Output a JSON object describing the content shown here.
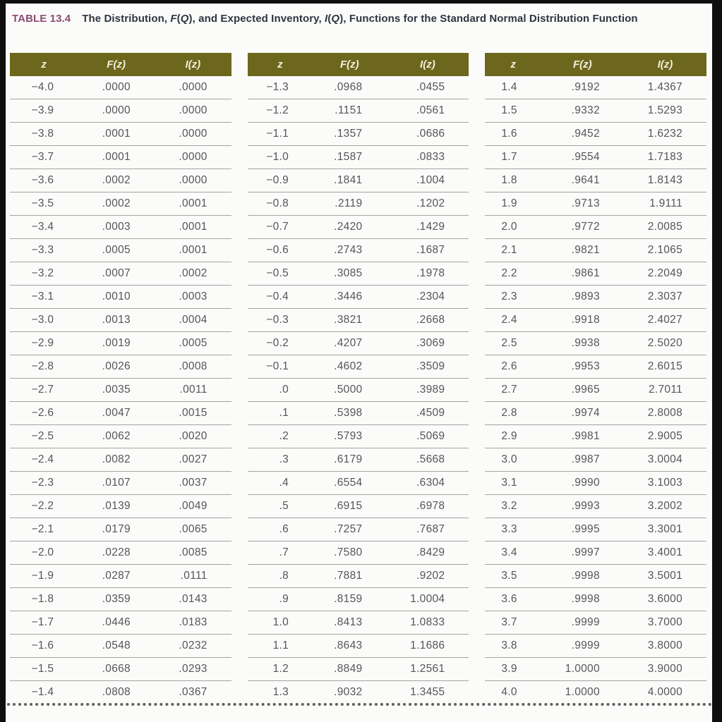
{
  "page": {
    "background": "#fbfbfa",
    "border_color": "#0f0f0f"
  },
  "title": {
    "label": "TABLE 13.4",
    "label_color": "#8c4b72",
    "subtitle_parts": [
      {
        "text": "The Distribution, ",
        "italic": false
      },
      {
        "text": "F",
        "italic": true
      },
      {
        "text": "(",
        "italic": false
      },
      {
        "text": "Q",
        "italic": true
      },
      {
        "text": "), and Expected Inventory, ",
        "italic": false
      },
      {
        "text": "I",
        "italic": true
      },
      {
        "text": "(",
        "italic": false
      },
      {
        "text": "Q",
        "italic": true
      },
      {
        "text": "), Functions for the Standard Normal Distribution Function",
        "italic": false
      }
    ]
  },
  "table": {
    "header_bg": "#6d671d",
    "header_text_color": "#f2efdc",
    "columns": [
      "z",
      "F(z)",
      "I(z)"
    ],
    "groups": [
      {
        "rows": [
          [
            "−4.0",
            ".0000",
            ".0000"
          ],
          [
            "−3.9",
            ".0000",
            ".0000"
          ],
          [
            "−3.8",
            ".0001",
            ".0000"
          ],
          [
            "−3.7",
            ".0001",
            ".0000"
          ],
          [
            "−3.6",
            ".0002",
            ".0000"
          ],
          [
            "−3.5",
            ".0002",
            ".0001"
          ],
          [
            "−3.4",
            ".0003",
            ".0001"
          ],
          [
            "−3.3",
            ".0005",
            ".0001"
          ],
          [
            "−3.2",
            ".0007",
            ".0002"
          ],
          [
            "−3.1",
            ".0010",
            ".0003"
          ],
          [
            "−3.0",
            ".0013",
            ".0004"
          ],
          [
            "−2.9",
            ".0019",
            ".0005"
          ],
          [
            "−2.8",
            ".0026",
            ".0008"
          ],
          [
            "−2.7",
            ".0035",
            ".0011"
          ],
          [
            "−2.6",
            ".0047",
            ".0015"
          ],
          [
            "−2.5",
            ".0062",
            ".0020"
          ],
          [
            "−2.4",
            ".0082",
            ".0027"
          ],
          [
            "−2.3",
            ".0107",
            ".0037"
          ],
          [
            "−2.2",
            ".0139",
            ".0049"
          ],
          [
            "−2.1",
            ".0179",
            ".0065"
          ],
          [
            "−2.0",
            ".0228",
            ".0085"
          ],
          [
            "−1.9",
            ".0287",
            ".0111"
          ],
          [
            "−1.8",
            ".0359",
            ".0143"
          ],
          [
            "−1.7",
            ".0446",
            ".0183"
          ],
          [
            "−1.6",
            ".0548",
            ".0232"
          ],
          [
            "−1.5",
            ".0668",
            ".0293"
          ],
          [
            "−1.4",
            ".0808",
            ".0367"
          ]
        ]
      },
      {
        "rows": [
          [
            "−1.3",
            ".0968",
            ".0455"
          ],
          [
            "−1.2",
            ".1151",
            ".0561"
          ],
          [
            "−1.1",
            ".1357",
            ".0686"
          ],
          [
            "−1.0",
            ".1587",
            ".0833"
          ],
          [
            "−0.9",
            ".1841",
            ".1004"
          ],
          [
            "−0.8",
            ".2119",
            ".1202"
          ],
          [
            "−0.7",
            ".2420",
            ".1429"
          ],
          [
            "−0.6",
            ".2743",
            ".1687"
          ],
          [
            "−0.5",
            ".3085",
            ".1978"
          ],
          [
            "−0.4",
            ".3446",
            ".2304"
          ],
          [
            "−0.3",
            ".3821",
            ".2668"
          ],
          [
            "−0.2",
            ".4207",
            ".3069"
          ],
          [
            "−0.1",
            ".4602",
            ".3509"
          ],
          [
            ".0",
            ".5000",
            ".3989"
          ],
          [
            ".1",
            ".5398",
            ".4509"
          ],
          [
            ".2",
            ".5793",
            ".5069"
          ],
          [
            ".3",
            ".6179",
            ".5668"
          ],
          [
            ".4",
            ".6554",
            ".6304"
          ],
          [
            ".5",
            ".6915",
            ".6978"
          ],
          [
            ".6",
            ".7257",
            ".7687"
          ],
          [
            ".7",
            ".7580",
            ".8429"
          ],
          [
            ".8",
            ".7881",
            ".9202"
          ],
          [
            ".9",
            ".8159",
            "1.0004"
          ],
          [
            "1.0",
            ".8413",
            "1.0833"
          ],
          [
            "1.1",
            ".8643",
            "1.1686"
          ],
          [
            "1.2",
            ".8849",
            "1.2561"
          ],
          [
            "1.3",
            ".9032",
            "1.3455"
          ]
        ]
      },
      {
        "rows": [
          [
            "1.4",
            ".9192",
            "1.4367"
          ],
          [
            "1.5",
            ".9332",
            "1.5293"
          ],
          [
            "1.6",
            ".9452",
            "1.6232"
          ],
          [
            "1.7",
            ".9554",
            "1.7183"
          ],
          [
            "1.8",
            ".9641",
            "1.8143"
          ],
          [
            "1.9",
            ".9713",
            "1.9111"
          ],
          [
            "2.0",
            ".9772",
            "2.0085"
          ],
          [
            "2.1",
            ".9821",
            "2.1065"
          ],
          [
            "2.2",
            ".9861",
            "2.2049"
          ],
          [
            "2.3",
            ".9893",
            "2.3037"
          ],
          [
            "2.4",
            ".9918",
            "2.4027"
          ],
          [
            "2.5",
            ".9938",
            "2.5020"
          ],
          [
            "2.6",
            ".9953",
            "2.6015"
          ],
          [
            "2.7",
            ".9965",
            "2.7011"
          ],
          [
            "2.8",
            ".9974",
            "2.8008"
          ],
          [
            "2.9",
            ".9981",
            "2.9005"
          ],
          [
            "3.0",
            ".9987",
            "3.0004"
          ],
          [
            "3.1",
            ".9990",
            "3.1003"
          ],
          [
            "3.2",
            ".9993",
            "3.2002"
          ],
          [
            "3.3",
            ".9995",
            "3.3001"
          ],
          [
            "3.4",
            ".9997",
            "3.4001"
          ],
          [
            "3.5",
            ".9998",
            "3.5001"
          ],
          [
            "3.6",
            ".9998",
            "3.6000"
          ],
          [
            "3.7",
            ".9999",
            "3.7000"
          ],
          [
            "3.8",
            ".9999",
            "3.8000"
          ],
          [
            "3.9",
            "1.0000",
            "3.9000"
          ],
          [
            "4.0",
            "1.0000",
            "4.0000"
          ]
        ]
      }
    ]
  }
}
